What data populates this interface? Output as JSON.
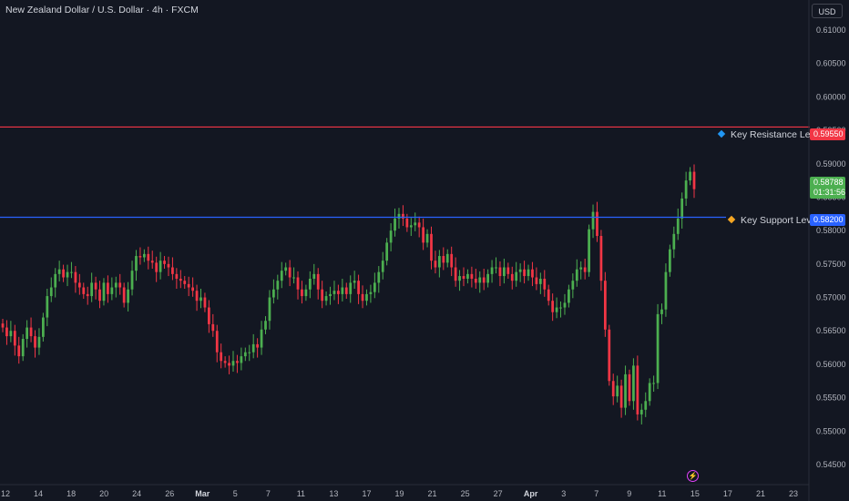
{
  "header": {
    "title": "New Zealand Dollar / U.S. Dollar · 4h · FXCM",
    "currency": "USD"
  },
  "levels": {
    "resistance": {
      "label": "Key Resistance Levels:",
      "price_label": "0.59550",
      "value": 0.5955,
      "color": "#f23645",
      "marker_color": "#2196f3"
    },
    "support": {
      "label": "Key Support Levels:",
      "price_label": "0.58200",
      "value": 0.582,
      "color": "#2962ff",
      "marker_color": "#f5a623"
    }
  },
  "last_price": {
    "price": "0.58788",
    "countdown": "01:31:56",
    "value": 0.58788,
    "color": "#4caf50"
  },
  "bolt_icon": "lightning-icon",
  "colors": {
    "up": "#4caf50",
    "down": "#f23645",
    "background": "#131722"
  },
  "chart_data": {
    "type": "candlestick",
    "title": "New Zealand Dollar / U.S. Dollar · 4h · FXCM",
    "ylim": [
      0.542,
      0.6145
    ],
    "y_ticks": [
      "0.61000",
      "0.60500",
      "0.60000",
      "0.59500",
      "0.59000",
      "0.58500",
      "0.58000",
      "0.57500",
      "0.57000",
      "0.56500",
      "0.56000",
      "0.55500",
      "0.55000",
      "0.54500"
    ],
    "x_ticks": [
      "12",
      "14",
      "18",
      "20",
      "24",
      "26",
      "Mar",
      "5",
      "7",
      "11",
      "13",
      "17",
      "19",
      "21",
      "25",
      "27",
      "Apr",
      "3",
      "7",
      "9",
      "11",
      "15",
      "17",
      "21",
      "23"
    ],
    "grid": false,
    "series": [
      {
        "name": "",
        "close": [
          0.5655,
          0.5642,
          0.565,
          0.5628,
          0.5612,
          0.5638,
          0.5655,
          0.5642,
          0.5625,
          0.5641,
          0.567,
          0.5702,
          0.5715,
          0.5735,
          0.5742,
          0.573,
          0.5738,
          0.5738,
          0.5722,
          0.5715,
          0.5705,
          0.5702,
          0.5722,
          0.5712,
          0.5695,
          0.5722,
          0.5705,
          0.5715,
          0.5722,
          0.5715,
          0.5692,
          0.5712,
          0.574,
          0.5762,
          0.576,
          0.5765,
          0.5755,
          0.5752,
          0.5738,
          0.5755,
          0.575,
          0.5745,
          0.5735,
          0.5728,
          0.5725,
          0.572,
          0.5715,
          0.571,
          0.5695,
          0.57,
          0.5685,
          0.566,
          0.565,
          0.5618,
          0.5605,
          0.5602,
          0.5598,
          0.5605,
          0.5602,
          0.5612,
          0.5618,
          0.5618,
          0.563,
          0.5625,
          0.5652,
          0.5665,
          0.57,
          0.5712,
          0.5725,
          0.574,
          0.5745,
          0.573,
          0.573,
          0.5712,
          0.5702,
          0.5712,
          0.5728,
          0.5735,
          0.5712,
          0.5695,
          0.5702,
          0.5705,
          0.571,
          0.5705,
          0.5715,
          0.5705,
          0.5722,
          0.5725,
          0.5705,
          0.5695,
          0.5705,
          0.5708,
          0.5722,
          0.5738,
          0.5755,
          0.5782,
          0.58,
          0.5818,
          0.5825,
          0.5818,
          0.5805,
          0.5808,
          0.5812,
          0.5805,
          0.5782,
          0.5795,
          0.5755,
          0.5745,
          0.5762,
          0.5752,
          0.5765,
          0.5745,
          0.5725,
          0.5732,
          0.5728,
          0.5735,
          0.5728,
          0.5722,
          0.573,
          0.5722,
          0.5735,
          0.5745,
          0.5745,
          0.5732,
          0.5745,
          0.5735,
          0.5725,
          0.5738,
          0.5742,
          0.5732,
          0.5742,
          0.573,
          0.572,
          0.5728,
          0.5712,
          0.5695,
          0.5678,
          0.5685,
          0.5685,
          0.5692,
          0.5712,
          0.5725,
          0.5742,
          0.5745,
          0.5738,
          0.5802,
          0.5828,
          0.5792,
          0.5725,
          0.5652,
          0.5575,
          0.5552,
          0.5568,
          0.5535,
          0.5585,
          0.5545,
          0.5598,
          0.5525,
          0.5532,
          0.5545,
          0.5572,
          0.5572,
          0.5675,
          0.5682,
          0.5738,
          0.5772,
          0.5795,
          0.5818,
          0.5848,
          0.5875,
          0.5888,
          0.5862
        ]
      }
    ]
  }
}
